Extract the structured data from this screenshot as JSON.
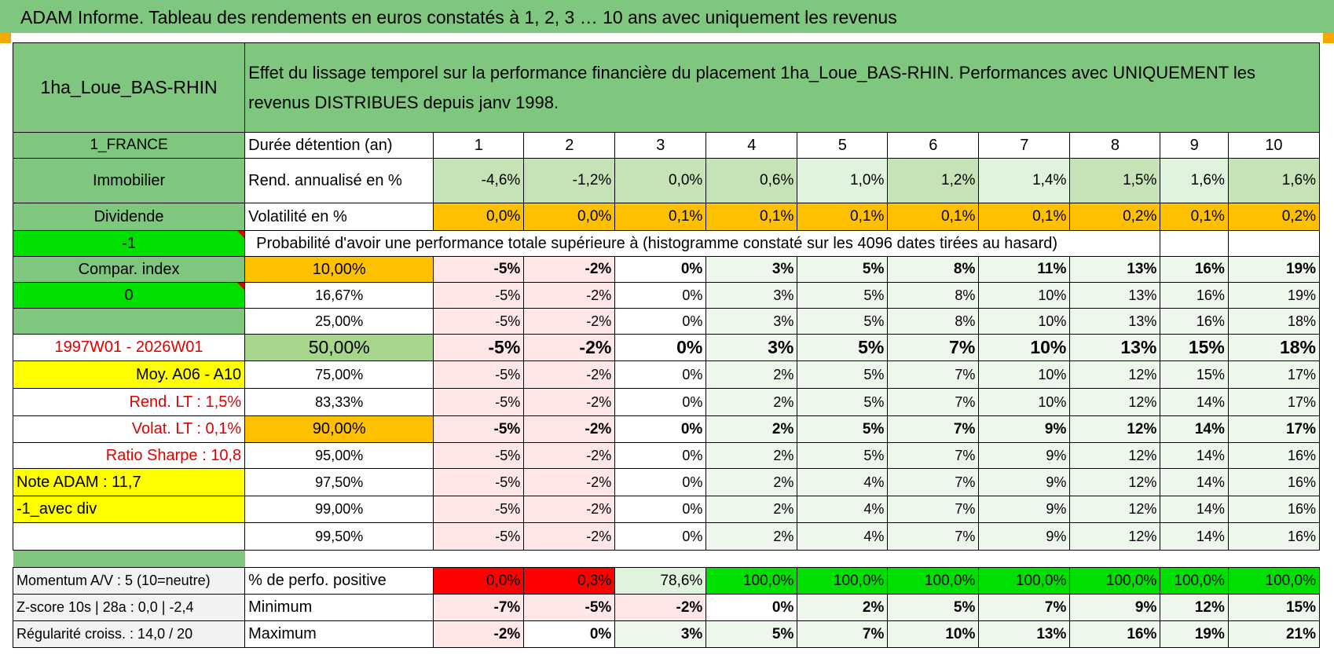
{
  "title": "ADAM Informe. Tableau des rendements en euros constatés à 1, 2, 3 … 10 ans avec uniquement les revenus",
  "header": {
    "asset": "1ha_Loue_BAS-RHIN",
    "description": "Effet du lissage temporel sur la performance financière du placement 1ha_Loue_BAS-RHIN. Performances avec UNIQUEMENT les revenus DISTRIBUES depuis janv 1998."
  },
  "side": {
    "country": "1_FRANCE",
    "category": "Immobilier",
    "type": "Dividende",
    "sel1": "-1",
    "compar": "Compar. index",
    "sel2": "0",
    "period": "1997W01 - 2026W01",
    "moy": "Moy. A06 - A10",
    "rend": "Rend. LT :   1,5%",
    "volat": "Volat. LT :   0,1%",
    "sharpe": "Ratio Sharpe :   10,8",
    "note": "Note ADAM : 11,7",
    "div": "-1_avec div"
  },
  "durations": {
    "label": "Durée détention (an)",
    "values": [
      "1",
      "2",
      "3",
      "4",
      "5",
      "6",
      "7",
      "8",
      "9",
      "10"
    ]
  },
  "annualized": {
    "label": "Rend. annualisé en %",
    "values": [
      "-4,6%",
      "-1,2%",
      "0,0%",
      "0,6%",
      "1,0%",
      "1,2%",
      "1,4%",
      "1,5%",
      "1,6%",
      "1,6%"
    ]
  },
  "volatility": {
    "label": "Volatilité en %",
    "values": [
      "0,0%",
      "0,0%",
      "0,1%",
      "0,1%",
      "0,1%",
      "0,1%",
      "0,1%",
      "0,2%",
      "0,1%",
      "0,2%"
    ]
  },
  "prob_title": "Probabilité d'avoir une performance totale supérieure à (histogramme constaté sur les 4096 dates tirées au hasard)",
  "prob_rows": [
    {
      "p": "10,00%",
      "v": [
        "-5%",
        "-2%",
        "0%",
        "3%",
        "5%",
        "8%",
        "11%",
        "13%",
        "16%",
        "19%"
      ]
    },
    {
      "p": "16,67%",
      "v": [
        "-5%",
        "-2%",
        "0%",
        "3%",
        "5%",
        "8%",
        "10%",
        "13%",
        "16%",
        "19%"
      ]
    },
    {
      "p": "25,00%",
      "v": [
        "-5%",
        "-2%",
        "0%",
        "3%",
        "5%",
        "8%",
        "10%",
        "13%",
        "16%",
        "18%"
      ]
    },
    {
      "p": "50,00%",
      "v": [
        "-5%",
        "-2%",
        "0%",
        "3%",
        "5%",
        "7%",
        "10%",
        "13%",
        "15%",
        "18%"
      ]
    },
    {
      "p": "75,00%",
      "v": [
        "-5%",
        "-2%",
        "0%",
        "2%",
        "5%",
        "7%",
        "10%",
        "12%",
        "15%",
        "17%"
      ]
    },
    {
      "p": "83,33%",
      "v": [
        "-5%",
        "-2%",
        "0%",
        "2%",
        "5%",
        "7%",
        "10%",
        "12%",
        "14%",
        "17%"
      ]
    },
    {
      "p": "90,00%",
      "v": [
        "-5%",
        "-2%",
        "0%",
        "2%",
        "5%",
        "7%",
        "9%",
        "12%",
        "14%",
        "17%"
      ]
    },
    {
      "p": "95,00%",
      "v": [
        "-5%",
        "-2%",
        "0%",
        "2%",
        "5%",
        "7%",
        "9%",
        "12%",
        "14%",
        "16%"
      ]
    },
    {
      "p": "97,50%",
      "v": [
        "-5%",
        "-2%",
        "0%",
        "2%",
        "4%",
        "7%",
        "9%",
        "12%",
        "14%",
        "16%"
      ]
    },
    {
      "p": "99,00%",
      "v": [
        "-5%",
        "-2%",
        "0%",
        "2%",
        "4%",
        "7%",
        "9%",
        "12%",
        "14%",
        "16%"
      ]
    },
    {
      "p": "99,50%",
      "v": [
        "-5%",
        "-2%",
        "0%",
        "2%",
        "4%",
        "7%",
        "9%",
        "12%",
        "14%",
        "16%"
      ]
    }
  ],
  "bottom": [
    {
      "side": "Momentum A/V : 5 (10=neutre)",
      "label": "% de perfo. positive",
      "v": [
        "0,0%",
        "0,3%",
        "78,6%",
        "100,0%",
        "100,0%",
        "100,0%",
        "100,0%",
        "100,0%",
        "100,0%",
        "100,0%"
      ]
    },
    {
      "side": "Z-score 10s | 28a : 0,0 | -2,4",
      "label": "Minimum",
      "v": [
        "-7%",
        "-5%",
        "-2%",
        "0%",
        "2%",
        "5%",
        "7%",
        "9%",
        "12%",
        "15%"
      ]
    },
    {
      "side": "Régularité croiss. : 14,0 / 20",
      "label": "Maximum",
      "v": [
        "-2%",
        "0%",
        "3%",
        "5%",
        "7%",
        "10%",
        "13%",
        "16%",
        "19%",
        "21%"
      ]
    }
  ],
  "colors": {
    "header_green": "#7fc67f",
    "bright_green": "#00e000",
    "orange": "#ffc000",
    "yellow": "#ffff00",
    "red": "#ff0000"
  }
}
